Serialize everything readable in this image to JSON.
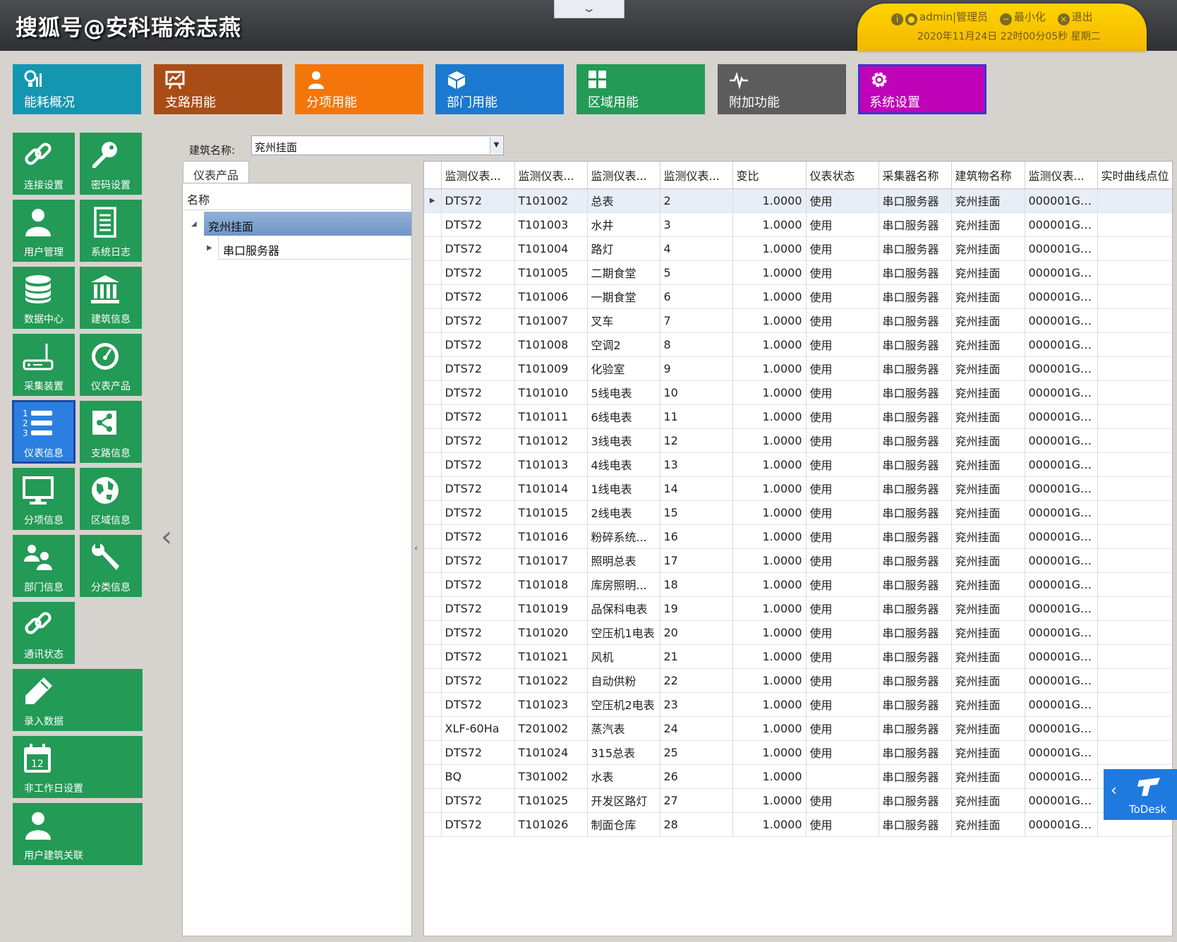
{
  "header": {
    "watermark": "搜狐号@安科瑞涂志燕",
    "user_label": "admin|管理员",
    "minimize_label": "最小化",
    "logout_label": "退出",
    "datetime": "2020年11月24日 22时00分05秒 星期二"
  },
  "top_nav": [
    {
      "label": "能耗概况",
      "icon": "chart-bars-icon",
      "color": "#1396b0"
    },
    {
      "label": "支路用能",
      "icon": "trend-board-icon",
      "color": "#a94d16"
    },
    {
      "label": "分项用能",
      "icon": "person-icon",
      "color": "#f4760b"
    },
    {
      "label": "部门用能",
      "icon": "cube-icon",
      "color": "#1b79cf"
    },
    {
      "label": "区域用能",
      "icon": "grid-icon",
      "color": "#239a55"
    },
    {
      "label": "附加功能",
      "icon": "pulse-icon",
      "color": "#5c5c5c"
    },
    {
      "label": "系统设置",
      "icon": "gear-icon",
      "color": "#c002b8"
    }
  ],
  "side_nav": [
    {
      "label": "连接设置",
      "icon": "link-icon"
    },
    {
      "label": "密码设置",
      "icon": "key-icon"
    },
    {
      "label": "用户管理",
      "icon": "user-icon"
    },
    {
      "label": "系统日志",
      "icon": "document-icon"
    },
    {
      "label": "数据中心",
      "icon": "database-icon"
    },
    {
      "label": "建筑信息",
      "icon": "building-icon"
    },
    {
      "label": "采集装置",
      "icon": "router-icon"
    },
    {
      "label": "仪表产品",
      "icon": "gauge-icon"
    },
    {
      "label": "仪表信息",
      "icon": "numbered-list-icon"
    },
    {
      "label": "支路信息",
      "icon": "share-icon"
    },
    {
      "label": "分项信息",
      "icon": "monitor-icon"
    },
    {
      "label": "区域信息",
      "icon": "globe-icon"
    },
    {
      "label": "部门信息",
      "icon": "users-icon"
    },
    {
      "label": "分类信息",
      "icon": "wrench-icon"
    },
    {
      "label": "通讯状态",
      "icon": "link-icon"
    },
    {
      "label": "录入数据",
      "icon": "pencil-icon"
    },
    {
      "label": "非工作日设置",
      "icon": "calendar-icon",
      "day": "12"
    },
    {
      "label": "用户建筑关联",
      "icon": "user-icon"
    }
  ],
  "filter": {
    "label": "建筑名称:",
    "value": "兖州挂面"
  },
  "tree": {
    "tab": "仪表产品",
    "column_header": "名称",
    "nodes": [
      "兖州挂面",
      "串口服务器"
    ]
  },
  "grid": {
    "columns": [
      "监测仪表...",
      "监测仪表...",
      "监测仪表...",
      "监测仪表...",
      "变比",
      "仪表状态",
      "采集器名称",
      "建筑物名称",
      "监测仪表...",
      "实时曲线点位"
    ],
    "rows": [
      [
        "DTS72",
        "T101002",
        "总表",
        "2",
        "1.0000",
        "使用",
        "串口服务器",
        "兖州挂面",
        "000001G0...",
        ""
      ],
      [
        "DTS72",
        "T101003",
        "水井",
        "3",
        "1.0000",
        "使用",
        "串口服务器",
        "兖州挂面",
        "000001G0...",
        ""
      ],
      [
        "DTS72",
        "T101004",
        "路灯",
        "4",
        "1.0000",
        "使用",
        "串口服务器",
        "兖州挂面",
        "000001G0...",
        ""
      ],
      [
        "DTS72",
        "T101005",
        "二期食堂",
        "5",
        "1.0000",
        "使用",
        "串口服务器",
        "兖州挂面",
        "000001G0...",
        ""
      ],
      [
        "DTS72",
        "T101006",
        "一期食堂",
        "6",
        "1.0000",
        "使用",
        "串口服务器",
        "兖州挂面",
        "000001G0...",
        ""
      ],
      [
        "DTS72",
        "T101007",
        "叉车",
        "7",
        "1.0000",
        "使用",
        "串口服务器",
        "兖州挂面",
        "000001G0...",
        ""
      ],
      [
        "DTS72",
        "T101008",
        "空调2",
        "8",
        "1.0000",
        "使用",
        "串口服务器",
        "兖州挂面",
        "000001G0...",
        ""
      ],
      [
        "DTS72",
        "T101009",
        "化验室",
        "9",
        "1.0000",
        "使用",
        "串口服务器",
        "兖州挂面",
        "000001G0...",
        ""
      ],
      [
        "DTS72",
        "T101010",
        "5线电表",
        "10",
        "1.0000",
        "使用",
        "串口服务器",
        "兖州挂面",
        "000001G0...",
        ""
      ],
      [
        "DTS72",
        "T101011",
        "6线电表",
        "11",
        "1.0000",
        "使用",
        "串口服务器",
        "兖州挂面",
        "000001G0...",
        ""
      ],
      [
        "DTS72",
        "T101012",
        "3线电表",
        "12",
        "1.0000",
        "使用",
        "串口服务器",
        "兖州挂面",
        "000001G0...",
        ""
      ],
      [
        "DTS72",
        "T101013",
        "4线电表",
        "13",
        "1.0000",
        "使用",
        "串口服务器",
        "兖州挂面",
        "000001G0...",
        ""
      ],
      [
        "DTS72",
        "T101014",
        "1线电表",
        "14",
        "1.0000",
        "使用",
        "串口服务器",
        "兖州挂面",
        "000001G0...",
        ""
      ],
      [
        "DTS72",
        "T101015",
        "2线电表",
        "15",
        "1.0000",
        "使用",
        "串口服务器",
        "兖州挂面",
        "000001G0...",
        ""
      ],
      [
        "DTS72",
        "T101016",
        "粉碎系统...",
        "16",
        "1.0000",
        "使用",
        "串口服务器",
        "兖州挂面",
        "000001G0...",
        ""
      ],
      [
        "DTS72",
        "T101017",
        "照明总表",
        "17",
        "1.0000",
        "使用",
        "串口服务器",
        "兖州挂面",
        "000001G0...",
        ""
      ],
      [
        "DTS72",
        "T101018",
        "库房照明...",
        "18",
        "1.0000",
        "使用",
        "串口服务器",
        "兖州挂面",
        "000001G0...",
        ""
      ],
      [
        "DTS72",
        "T101019",
        "品保科电表",
        "19",
        "1.0000",
        "使用",
        "串口服务器",
        "兖州挂面",
        "000001G0...",
        ""
      ],
      [
        "DTS72",
        "T101020",
        "空压机1电表",
        "20",
        "1.0000",
        "使用",
        "串口服务器",
        "兖州挂面",
        "000001G0...",
        ""
      ],
      [
        "DTS72",
        "T101021",
        "风机",
        "21",
        "1.0000",
        "使用",
        "串口服务器",
        "兖州挂面",
        "000001G0...",
        ""
      ],
      [
        "DTS72",
        "T101022",
        "自动供粉",
        "22",
        "1.0000",
        "使用",
        "串口服务器",
        "兖州挂面",
        "000001G0...",
        ""
      ],
      [
        "DTS72",
        "T101023",
        "空压机2电表",
        "23",
        "1.0000",
        "使用",
        "串口服务器",
        "兖州挂面",
        "000001G0...",
        ""
      ],
      [
        "XLF-60Ha",
        "T201002",
        "蒸汽表",
        "24",
        "1.0000",
        "使用",
        "串口服务器",
        "兖州挂面",
        "000001G0...",
        ""
      ],
      [
        "DTS72",
        "T101024",
        "315总表",
        "25",
        "1.0000",
        "使用",
        "串口服务器",
        "兖州挂面",
        "000001G0...",
        ""
      ],
      [
        "BQ",
        "T301002",
        "水表",
        "26",
        "1.0000",
        "",
        "串口服务器",
        "兖州挂面",
        "000001G0...",
        ""
      ],
      [
        "DTS72",
        "T101025",
        "开发区路灯",
        "27",
        "1.0000",
        "使用",
        "串口服务器",
        "兖州挂面",
        "000001G0...",
        ""
      ],
      [
        "DTS72",
        "T101026",
        "制面仓库",
        "28",
        "1.0000",
        "使用",
        "串口服务器",
        "兖州挂面",
        "000001G0...",
        ""
      ]
    ]
  },
  "todesk": {
    "label": "ToDesk"
  }
}
